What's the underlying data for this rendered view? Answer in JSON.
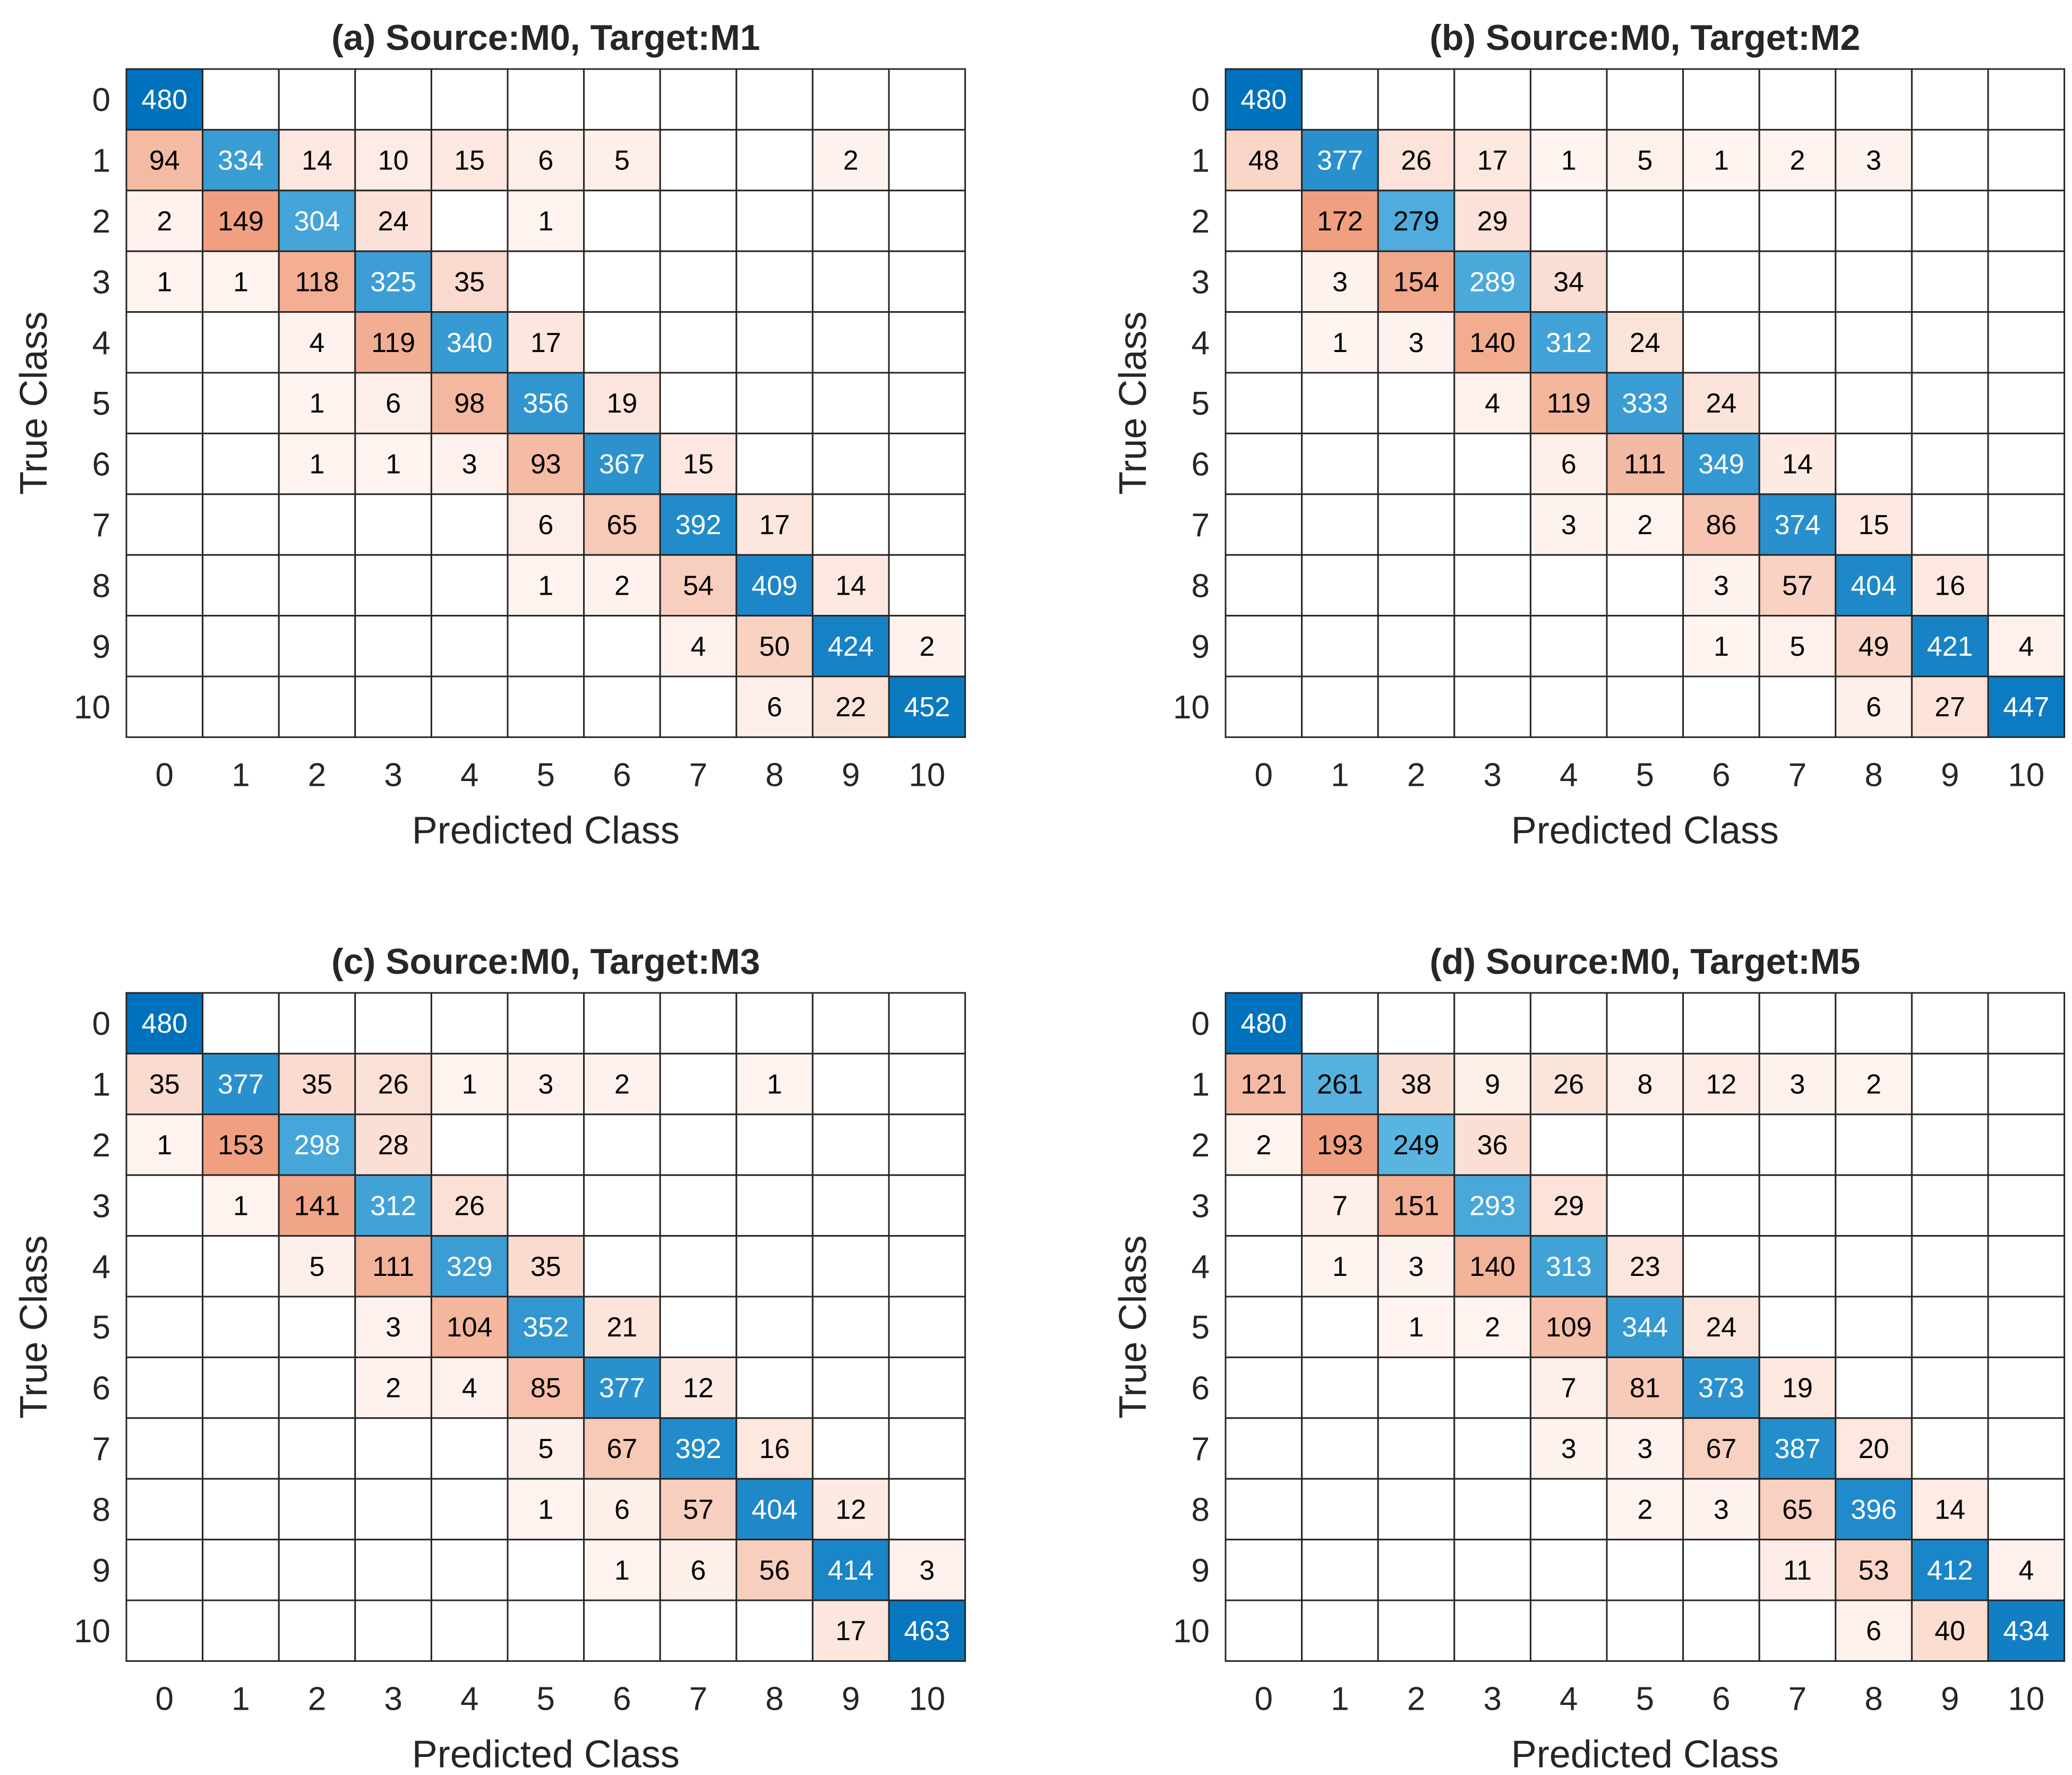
{
  "chart_data": [
    {
      "type": "heatmap",
      "title": "(a) Source:M0, Target:M1",
      "xlabel": "Predicted Class",
      "ylabel": "True Class",
      "x_ticks": [
        "0",
        "1",
        "2",
        "3",
        "4",
        "5",
        "6",
        "7",
        "8",
        "9",
        "10"
      ],
      "y_ticks": [
        "0",
        "1",
        "2",
        "3",
        "4",
        "5",
        "6",
        "7",
        "8",
        "9",
        "10"
      ],
      "matrix": [
        [
          480,
          0,
          0,
          0,
          0,
          0,
          0,
          0,
          0,
          0,
          0
        ],
        [
          94,
          334,
          14,
          10,
          15,
          6,
          5,
          0,
          0,
          2,
          0
        ],
        [
          2,
          149,
          304,
          24,
          0,
          1,
          0,
          0,
          0,
          0,
          0
        ],
        [
          1,
          1,
          118,
          325,
          35,
          0,
          0,
          0,
          0,
          0,
          0
        ],
        [
          0,
          0,
          4,
          119,
          340,
          17,
          0,
          0,
          0,
          0,
          0
        ],
        [
          0,
          0,
          1,
          6,
          98,
          356,
          19,
          0,
          0,
          0,
          0
        ],
        [
          0,
          0,
          1,
          1,
          3,
          93,
          367,
          15,
          0,
          0,
          0
        ],
        [
          0,
          0,
          0,
          0,
          0,
          6,
          65,
          392,
          17,
          0,
          0
        ],
        [
          0,
          0,
          0,
          0,
          0,
          1,
          2,
          54,
          409,
          14,
          0
        ],
        [
          0,
          0,
          0,
          0,
          0,
          0,
          0,
          4,
          50,
          424,
          2
        ],
        [
          0,
          0,
          0,
          0,
          0,
          0,
          0,
          0,
          6,
          22,
          452
        ]
      ]
    },
    {
      "type": "heatmap",
      "title": "(b) Source:M0, Target:M2",
      "xlabel": "Predicted Class",
      "ylabel": "True Class",
      "x_ticks": [
        "0",
        "1",
        "2",
        "3",
        "4",
        "5",
        "6",
        "7",
        "8",
        "9",
        "10"
      ],
      "y_ticks": [
        "0",
        "1",
        "2",
        "3",
        "4",
        "5",
        "6",
        "7",
        "8",
        "9",
        "10"
      ],
      "matrix": [
        [
          480,
          0,
          0,
          0,
          0,
          0,
          0,
          0,
          0,
          0,
          0
        ],
        [
          48,
          377,
          26,
          17,
          1,
          5,
          1,
          2,
          3,
          0,
          0
        ],
        [
          0,
          172,
          279,
          29,
          0,
          0,
          0,
          0,
          0,
          0,
          0
        ],
        [
          0,
          3,
          154,
          289,
          34,
          0,
          0,
          0,
          0,
          0,
          0
        ],
        [
          0,
          1,
          3,
          140,
          312,
          24,
          0,
          0,
          0,
          0,
          0
        ],
        [
          0,
          0,
          0,
          4,
          119,
          333,
          24,
          0,
          0,
          0,
          0
        ],
        [
          0,
          0,
          0,
          0,
          6,
          111,
          349,
          14,
          0,
          0,
          0
        ],
        [
          0,
          0,
          0,
          0,
          3,
          2,
          86,
          374,
          15,
          0,
          0
        ],
        [
          0,
          0,
          0,
          0,
          0,
          0,
          3,
          57,
          404,
          16,
          0
        ],
        [
          0,
          0,
          0,
          0,
          0,
          0,
          1,
          5,
          49,
          421,
          4
        ],
        [
          0,
          0,
          0,
          0,
          0,
          0,
          0,
          0,
          6,
          27,
          447
        ]
      ]
    },
    {
      "type": "heatmap",
      "title": "(c) Source:M0, Target:M3",
      "xlabel": "Predicted Class",
      "ylabel": "True Class",
      "x_ticks": [
        "0",
        "1",
        "2",
        "3",
        "4",
        "5",
        "6",
        "7",
        "8",
        "9",
        "10"
      ],
      "y_ticks": [
        "0",
        "1",
        "2",
        "3",
        "4",
        "5",
        "6",
        "7",
        "8",
        "9",
        "10"
      ],
      "matrix": [
        [
          480,
          0,
          0,
          0,
          0,
          0,
          0,
          0,
          0,
          0,
          0
        ],
        [
          35,
          377,
          35,
          26,
          1,
          3,
          2,
          0,
          1,
          0,
          0
        ],
        [
          1,
          153,
          298,
          28,
          0,
          0,
          0,
          0,
          0,
          0,
          0
        ],
        [
          0,
          1,
          141,
          312,
          26,
          0,
          0,
          0,
          0,
          0,
          0
        ],
        [
          0,
          0,
          5,
          111,
          329,
          35,
          0,
          0,
          0,
          0,
          0
        ],
        [
          0,
          0,
          0,
          3,
          104,
          352,
          21,
          0,
          0,
          0,
          0
        ],
        [
          0,
          0,
          0,
          2,
          4,
          85,
          377,
          12,
          0,
          0,
          0
        ],
        [
          0,
          0,
          0,
          0,
          0,
          5,
          67,
          392,
          16,
          0,
          0
        ],
        [
          0,
          0,
          0,
          0,
          0,
          1,
          6,
          57,
          404,
          12,
          0
        ],
        [
          0,
          0,
          0,
          0,
          0,
          0,
          1,
          6,
          56,
          414,
          3
        ],
        [
          0,
          0,
          0,
          0,
          0,
          0,
          0,
          0,
          0,
          17,
          463
        ]
      ]
    },
    {
      "type": "heatmap",
      "title": "(d) Source:M0, Target:M5",
      "xlabel": "Predicted Class",
      "ylabel": "True Class",
      "x_ticks": [
        "0",
        "1",
        "2",
        "3",
        "4",
        "5",
        "6",
        "7",
        "8",
        "9",
        "10"
      ],
      "y_ticks": [
        "0",
        "1",
        "2",
        "3",
        "4",
        "5",
        "6",
        "7",
        "8",
        "9",
        "10"
      ],
      "matrix": [
        [
          480,
          0,
          0,
          0,
          0,
          0,
          0,
          0,
          0,
          0,
          0
        ],
        [
          121,
          261,
          38,
          9,
          26,
          8,
          12,
          3,
          2,
          0,
          0
        ],
        [
          2,
          193,
          249,
          36,
          0,
          0,
          0,
          0,
          0,
          0,
          0
        ],
        [
          0,
          7,
          151,
          293,
          29,
          0,
          0,
          0,
          0,
          0,
          0
        ],
        [
          0,
          1,
          3,
          140,
          313,
          23,
          0,
          0,
          0,
          0,
          0
        ],
        [
          0,
          0,
          1,
          2,
          109,
          344,
          24,
          0,
          0,
          0,
          0
        ],
        [
          0,
          0,
          0,
          0,
          7,
          81,
          373,
          19,
          0,
          0,
          0
        ],
        [
          0,
          0,
          0,
          0,
          3,
          3,
          67,
          387,
          20,
          0,
          0
        ],
        [
          0,
          0,
          0,
          0,
          0,
          2,
          3,
          65,
          396,
          14,
          0
        ],
        [
          0,
          0,
          0,
          0,
          0,
          0,
          0,
          11,
          53,
          412,
          4
        ],
        [
          0,
          0,
          0,
          0,
          0,
          0,
          0,
          0,
          6,
          40,
          434
        ]
      ]
    }
  ],
  "colors": {
    "diagonal_max": "#0072bd",
    "diagonal_min": "#5ab4e0",
    "offdiag_max": "#f0a080",
    "offdiag_min": "#fff5f2",
    "grid": "#262626",
    "text_dark": "#000000",
    "text_light": "#ffffff"
  }
}
